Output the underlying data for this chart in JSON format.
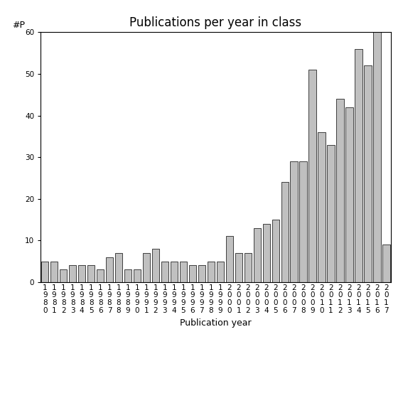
{
  "title": "Publications per year in class",
  "xlabel": "Publication year",
  "ylabel": "#P",
  "years": [
    "1980",
    "1981",
    "1982",
    "1983",
    "1984",
    "1985",
    "1986",
    "1987",
    "1988",
    "1989",
    "1990",
    "1991",
    "1992",
    "1993",
    "1994",
    "1995",
    "1996",
    "1997",
    "1998",
    "1999",
    "2000",
    "2001",
    "2002",
    "2003",
    "2004",
    "2005",
    "2006",
    "2007",
    "2008",
    "2009",
    "2010",
    "2011",
    "2012",
    "2013",
    "2014",
    "2015",
    "2016",
    "2017"
  ],
  "values": [
    5,
    5,
    3,
    4,
    4,
    4,
    3,
    6,
    7,
    3,
    3,
    7,
    8,
    5,
    5,
    5,
    4,
    4,
    5,
    5,
    11,
    7,
    7,
    13,
    14,
    15,
    24,
    29,
    29,
    51,
    36,
    33,
    44,
    42,
    56,
    52,
    60,
    9
  ],
  "bar_color": "#c0c0c0",
  "bar_edgecolor": "#000000",
  "ylim": [
    0,
    60
  ],
  "yticks": [
    0,
    10,
    20,
    30,
    40,
    50,
    60
  ],
  "background_color": "#ffffff",
  "title_fontsize": 12,
  "label_fontsize": 9,
  "tick_fontsize": 7.5
}
